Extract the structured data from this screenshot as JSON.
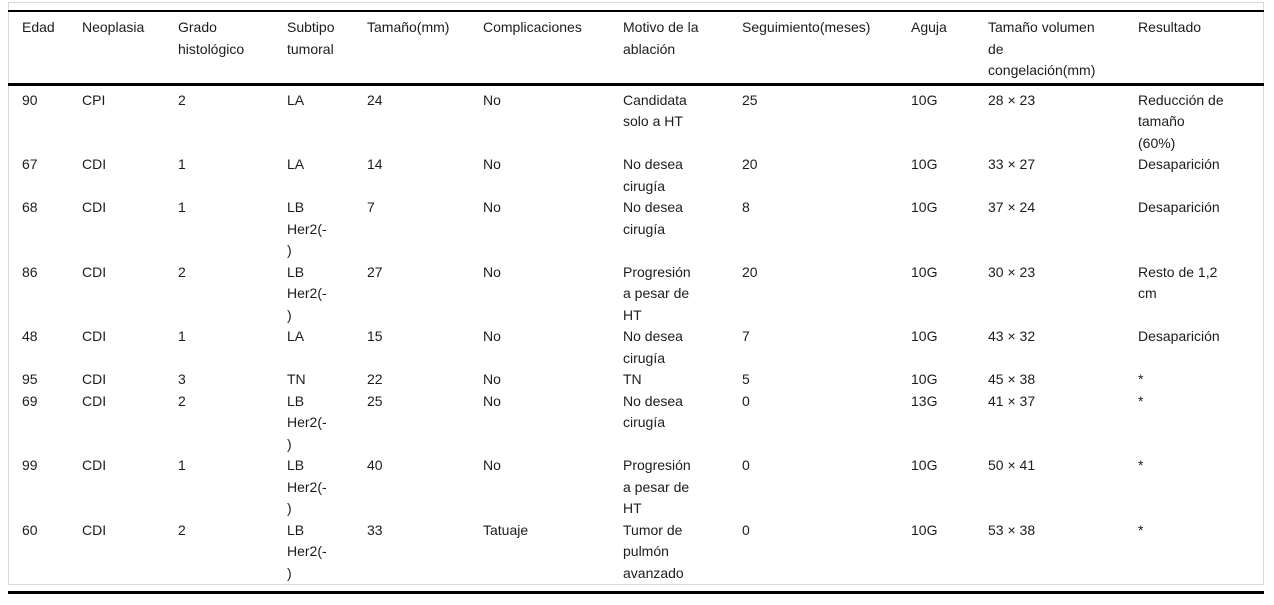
{
  "table": {
    "columns": [
      "Edad",
      "Neoplasia",
      "Grado\nhistológico",
      "Subtipo\ntumoral",
      "Tamaño(mm)",
      "Complicaciones",
      "Motivo de la\nablación",
      "Seguimiento(meses)",
      "Aguja",
      "Tamaño volumen\nde\ncongelación(mm)",
      "Resultado"
    ],
    "rows": [
      [
        "90",
        "CPI",
        "2",
        "LA",
        "24",
        "No",
        "Candidata\nsolo a HT",
        "25",
        "10G",
        "28 × 23",
        "Reducción de\ntamaño\n(60%)"
      ],
      [
        "67",
        "CDI",
        "1",
        "LA",
        "14",
        "No",
        "No desea\ncirugía",
        "20",
        "10G",
        "33 × 27",
        "Desaparición"
      ],
      [
        "68",
        "CDI",
        "1",
        "LB\nHer2(-\n)",
        "7",
        "No",
        "No desea\ncirugía",
        "8",
        "10G",
        "37 × 24",
        "Desaparición"
      ],
      [
        "86",
        "CDI",
        "2",
        "LB\nHer2(-\n)",
        "27",
        "No",
        "Progresión\na pesar de\nHT",
        "20",
        "10G",
        "30 × 23",
        "Resto de 1,2\ncm"
      ],
      [
        "48",
        "CDI",
        "1",
        "LA",
        "15",
        "No",
        "No desea\ncirugía",
        "7",
        "10G",
        "43 × 32",
        "Desaparición"
      ],
      [
        "95",
        "CDI",
        "3",
        "TN",
        "22",
        "No",
        "TN",
        "5",
        "10G",
        "45 × 38",
        "*"
      ],
      [
        "69",
        "CDI",
        "2",
        "LB\nHer2(-\n)",
        "25",
        "No",
        "No desea\ncirugía",
        "0",
        "13G",
        "41 × 37",
        "*"
      ],
      [
        "99",
        "CDI",
        "1",
        "LB\nHer2(-\n)",
        "40",
        "No",
        "Progresión\na pesar de\nHT",
        "0",
        "10G",
        "50 × 41",
        "*"
      ],
      [
        "60",
        "CDI",
        "2",
        "LB\nHer2(-\n)",
        "33",
        "Tatuaje",
        "Tumor de\npulmón\navanzado",
        "0",
        "10G",
        "53 × 38",
        "*"
      ]
    ]
  },
  "colors": {
    "text": "#1c1c1c",
    "rule": "#000000",
    "frame_border": "#d8d8d8",
    "background": "#ffffff"
  }
}
